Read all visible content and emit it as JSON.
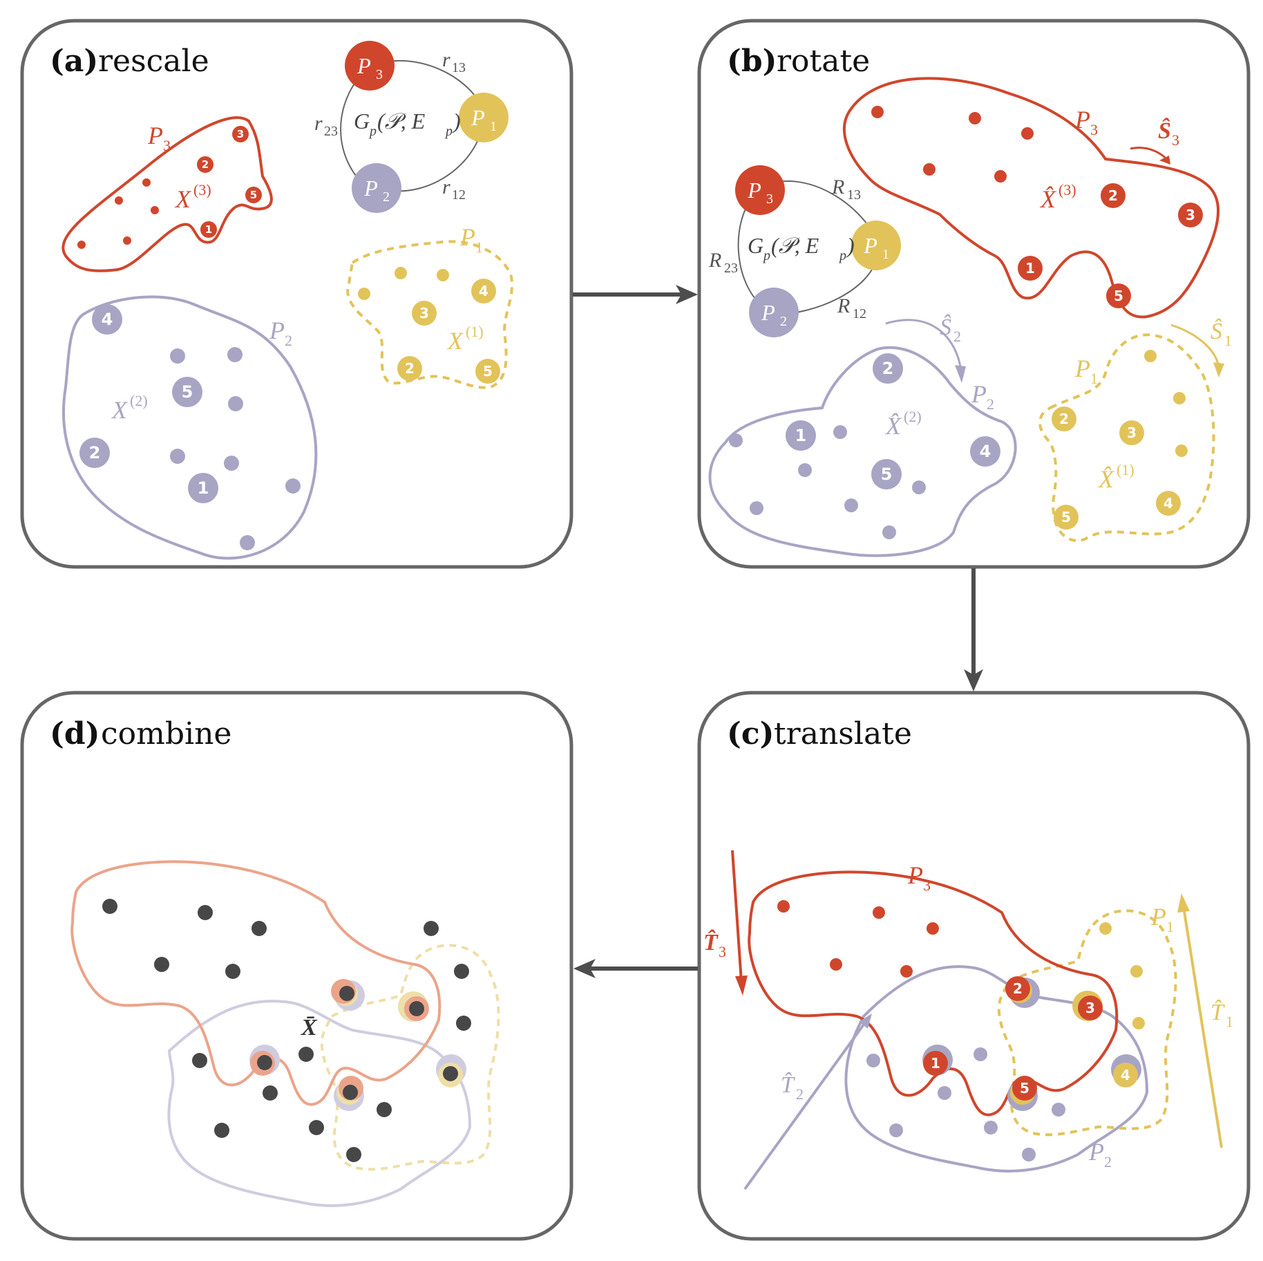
{
  "panels": {
    "a": {
      "letter": "(a)",
      "title": "rescale"
    },
    "b": {
      "letter": "(b)",
      "title": "rotate"
    },
    "c": {
      "letter": "(c)",
      "title": "translate"
    },
    "d": {
      "letter": "(d)",
      "title": "combine"
    }
  },
  "graph": {
    "node_main": "P",
    "node_subs": [
      "3",
      "1",
      "2"
    ],
    "center_G": "G",
    "center_G_sub": "p",
    "center_args": "(𝒫, E",
    "center_args_sub": "p",
    "center_close": ")",
    "edges_a": {
      "r": "r",
      "s13": "13",
      "s23": "23",
      "s12": "12"
    },
    "edges_b": {
      "R": "R",
      "s13": "13",
      "s23": "23",
      "s12": "12"
    }
  },
  "labels": {
    "P": "P",
    "X": "X",
    "X_hat": "X̂",
    "X_bar": "X̄",
    "sup1": "(1)",
    "sup2": "(2)",
    "sup3": "(3)",
    "S_hat": "Ŝ",
    "T_hat": "T̂",
    "s1": "1",
    "s2": "2",
    "s3": "3"
  },
  "colors": {
    "red": "#D0462C",
    "purple": "#A8A4C4",
    "yellow": "#E2C35A",
    "dark": "#474747",
    "border": "#666666",
    "arrow": "#4d4d4d",
    "light_red": "#EBA48A",
    "light_purple": "#CFCCE0",
    "light_yellow": "#EEDFA8"
  },
  "point_numbers": [
    "1",
    "2",
    "3",
    "4",
    "5"
  ]
}
